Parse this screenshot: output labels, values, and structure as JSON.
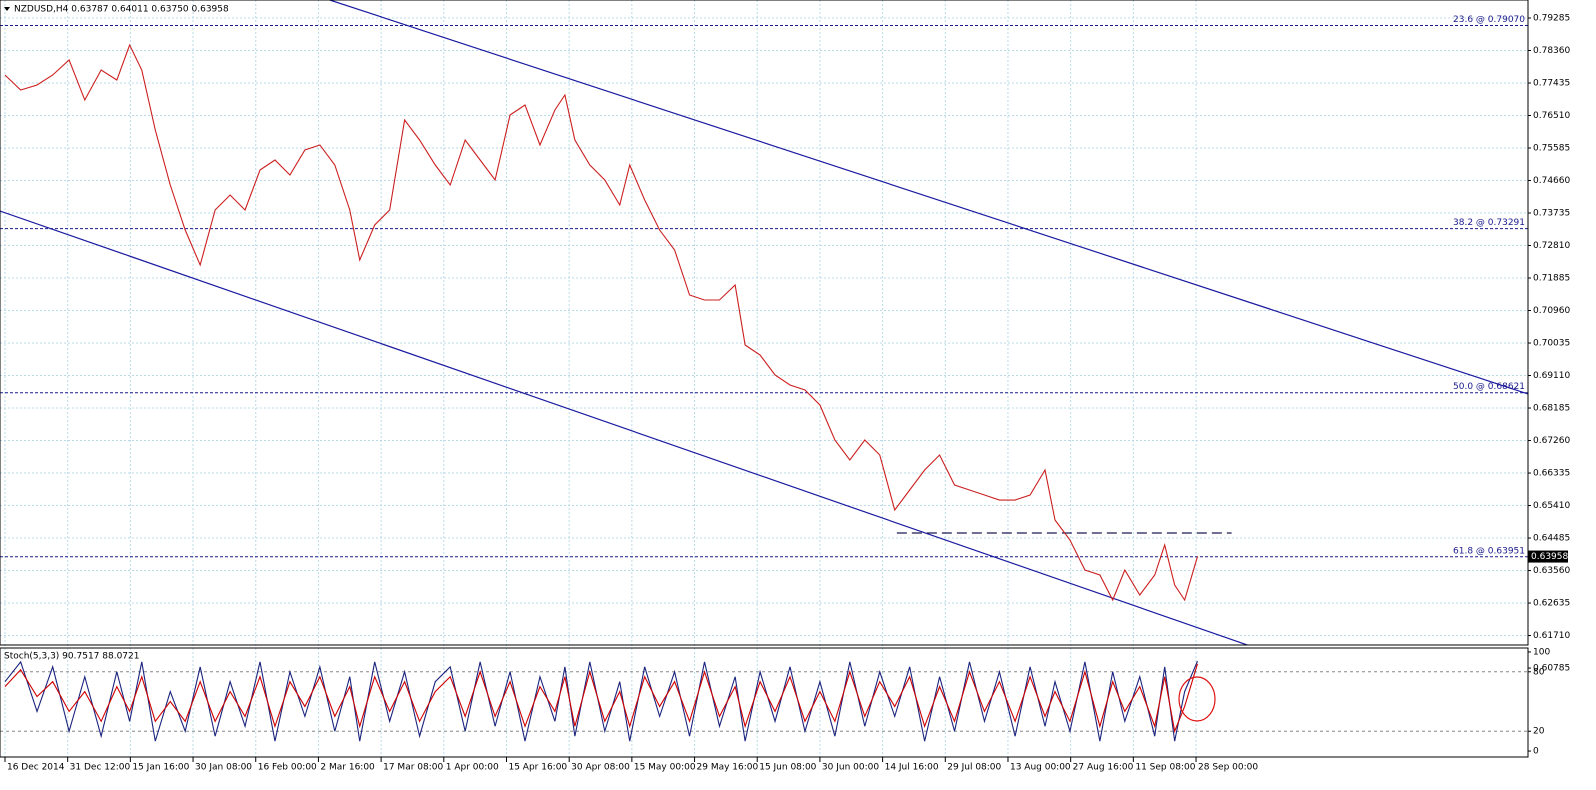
{
  "chart_data": [
    {
      "type": "line",
      "title": "NZDUSD,H4 0.63787 0.64011 0.63750 0.63958",
      "x": [
        0,
        22,
        45,
        67,
        90,
        112,
        135,
        157,
        175,
        192,
        211,
        232,
        253,
        274,
        295,
        316,
        337,
        358,
        379,
        400,
        421,
        442,
        463,
        484,
        498,
        519,
        540,
        561,
        582,
        604,
        625,
        646,
        667,
        688,
        709,
        730,
        751,
        772,
        786,
        800,
        821,
        842,
        863,
        877,
        898,
        919,
        940,
        961,
        982,
        1003,
        1025,
        1039,
        1060,
        1081,
        1102,
        1123,
        1144,
        1165,
        1186,
        1207,
        1228,
        1249,
        1270,
        1291,
        1312,
        1333,
        1354,
        1375,
        1396,
        1418,
        1439,
        1460,
        1474,
        1495,
        1516,
        1537,
        1555,
        1572,
        1593,
        1614,
        1628,
        1642,
        1656,
        1674
      ],
      "values": [
        0.77663,
        0.77236,
        0.77378,
        0.77663,
        0.7809,
        0.76951,
        0.77805,
        0.7752,
        0.78517,
        0.77805,
        0.76097,
        0.74532,
        0.73251,
        0.72255,
        0.73821,
        0.74248,
        0.73821,
        0.74959,
        0.75244,
        0.74817,
        0.75528,
        0.75671,
        0.75101,
        0.73821,
        0.72398,
        0.73394,
        0.73821,
        0.76382,
        0.75813,
        0.75101,
        0.74532,
        0.75813,
        0.75244,
        0.74674,
        0.76524,
        0.76809,
        0.75671,
        0.76667,
        0.77094,
        0.75813,
        0.75101,
        0.74674,
        0.73963,
        0.75101,
        0.74105,
        0.73251,
        0.72682,
        0.71402,
        0.71259,
        0.71259,
        0.71686,
        0.69979,
        0.69694,
        0.69125,
        0.6884,
        0.68698,
        0.68271,
        0.67275,
        0.66706,
        0.67275,
        0.66848,
        0.65283,
        0.65852,
        0.66421,
        0.66848,
        0.65994,
        0.65852,
        0.6571,
        0.65567,
        0.65567,
        0.6571,
        0.66421,
        0.64998,
        0.64429,
        0.63575,
        0.63433,
        0.62721,
        0.63575,
        0.62864,
        0.63433,
        0.64287,
        0.63148,
        0.62721,
        0.63958
      ],
      "color": "#cc1f1f",
      "xlim": [
        -7,
        2138
      ],
      "xticks": [
        {
          "value": 0,
          "label": "16 Dec 2014"
        },
        {
          "value": 88,
          "label": "31 Dec 12:00"
        },
        {
          "value": 176,
          "label": "15 Jan 16:00"
        },
        {
          "value": 264,
          "label": "30 Jan 08:00"
        },
        {
          "value": 352,
          "label": "16 Feb 00:00"
        },
        {
          "value": 440,
          "label": "2 Mar 16:00"
        },
        {
          "value": 528,
          "label": "17 Mar 08:00"
        },
        {
          "value": 616,
          "label": "1 Apr 00:00"
        },
        {
          "value": 704,
          "label": "15 Apr 16:00"
        },
        {
          "value": 792,
          "label": "30 Apr 08:00"
        },
        {
          "value": 880,
          "label": "15 May 00:00"
        },
        {
          "value": 968,
          "label": "29 May 16:00"
        },
        {
          "value": 1056,
          "label": "15 Jun 08:00"
        },
        {
          "value": 1144,
          "label": "30 Jun 00:00"
        },
        {
          "value": 1232,
          "label": "14 Jul 16:00"
        },
        {
          "value": 1320,
          "label": "29 Jul 08:00"
        },
        {
          "value": 1408,
          "label": "13 Aug 00:00"
        },
        {
          "value": 1496,
          "label": "27 Aug 16:00"
        },
        {
          "value": 1584,
          "label": "11 Sep 08:00"
        },
        {
          "value": 1672,
          "label": "28 Sep 00:00"
        }
      ],
      "ylim": [
        0.61441,
        0.79797
      ],
      "yticks": [
        0.79285,
        {
          "value": 0.7836,
          "label": "0.78360"
        },
        0.77435,
        {
          "value": 0.7651,
          "label": "0.76510"
        },
        0.75585,
        {
          "value": 0.7466,
          "label": "0.74660"
        },
        0.73735,
        {
          "value": 0.7281,
          "label": "0.72810"
        },
        0.71885,
        {
          "value": 0.7096,
          "label": "0.70960"
        },
        0.70035,
        {
          "value": 0.6911,
          "label": "0.69110"
        },
        0.68185,
        {
          "value": 0.6726,
          "label": "0.67260"
        },
        0.66335,
        {
          "value": 0.6541,
          "label": "0.65410"
        },
        0.64485,
        {
          "value": 0.6356,
          "label": "0.63560"
        },
        0.62635,
        {
          "value": 0.6171,
          "label": "0.61710"
        },
        0.60785
      ],
      "grid": true,
      "last_price": 0.63958,
      "hlines": [
        {
          "value": 0.7907,
          "label": "23.6 @ 0.79070"
        },
        {
          "value": 0.73291,
          "label": "38.2 @ 0.73291"
        },
        {
          "value": 0.68621,
          "label": "50.0 @ 0.68621"
        },
        {
          "value": 0.63951,
          "label": "61.8 @ 0.63951"
        }
      ],
      "trendlines": [
        {
          "x": [
            456,
            2138
          ],
          "y": [
            0.79797,
            0.68586
          ]
        },
        {
          "x": [
            -7,
            1853
          ],
          "y": [
            0.73792,
            0.60672
          ]
        }
      ],
      "segments": [
        {
          "x": [
            1252,
            1722
          ],
          "y": 0.64628
        }
      ]
    },
    {
      "type": "line",
      "title": "Stoch(5,3,3) 90.7517 88.0721",
      "x": [
        0,
        22,
        45,
        67,
        90,
        112,
        135,
        157,
        175,
        192,
        211,
        232,
        253,
        274,
        295,
        316,
        337,
        358,
        379,
        400,
        421,
        442,
        463,
        484,
        498,
        519,
        540,
        561,
        582,
        604,
        625,
        646,
        667,
        688,
        709,
        730,
        751,
        772,
        786,
        800,
        821,
        842,
        863,
        877,
        898,
        919,
        940,
        961,
        982,
        1003,
        1025,
        1039,
        1060,
        1081,
        1102,
        1123,
        1144,
        1165,
        1186,
        1207,
        1228,
        1249,
        1270,
        1291,
        1312,
        1333,
        1354,
        1375,
        1396,
        1418,
        1439,
        1460,
        1474,
        1495,
        1516,
        1537,
        1555,
        1572,
        1593,
        1614,
        1628,
        1642,
        1656,
        1674
      ],
      "xlim": [
        -7,
        2138
      ],
      "ylim": [
        -6,
        104
      ],
      "yticks": [
        0,
        20,
        80,
        100
      ],
      "levels": [
        20,
        80
      ],
      "series": [
        {
          "color": "#1a237e",
          "values": [
            70,
            90,
            40,
            85,
            20,
            75,
            15,
            80,
            30,
            90,
            10,
            60,
            20,
            85,
            15,
            70,
            25,
            90,
            10,
            80,
            35,
            85,
            20,
            75,
            10,
            90,
            30,
            80,
            15,
            70,
            85,
            20,
            90,
            25,
            80,
            10,
            75,
            30,
            85,
            15,
            90,
            20,
            70,
            10,
            85,
            35,
            80,
            15,
            90,
            25,
            75,
            10,
            80,
            30,
            85,
            20,
            70,
            15,
            90,
            25,
            80,
            35,
            85,
            10,
            75,
            20,
            90,
            30,
            80,
            15,
            85,
            25,
            70,
            20,
            90,
            10,
            80,
            30,
            75,
            15,
            85,
            10,
            60,
            90.7517
          ]
        },
        {
          "color": "#d00000",
          "values": [
            65,
            82,
            55,
            70,
            40,
            60,
            30,
            65,
            40,
            75,
            30,
            50,
            30,
            70,
            30,
            60,
            35,
            75,
            25,
            70,
            45,
            75,
            35,
            65,
            25,
            75,
            40,
            70,
            30,
            60,
            75,
            35,
            80,
            35,
            70,
            25,
            65,
            40,
            75,
            25,
            80,
            30,
            60,
            25,
            75,
            45,
            70,
            30,
            80,
            35,
            65,
            25,
            70,
            40,
            75,
            30,
            60,
            30,
            80,
            35,
            70,
            45,
            75,
            25,
            65,
            30,
            80,
            40,
            70,
            30,
            75,
            35,
            60,
            30,
            80,
            25,
            70,
            40,
            65,
            25,
            75,
            20,
            45,
            88.0721
          ]
        }
      ]
    }
  ]
}
